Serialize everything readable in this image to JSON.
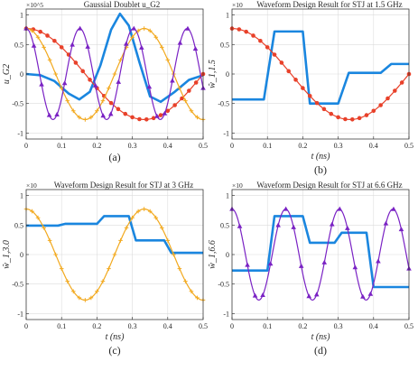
{
  "colors": {
    "blue": "#1a86df",
    "red": "#e8412a",
    "orange": "#f2a91e",
    "purple": "#7a22c4",
    "grid": "#dcdcdc",
    "axis": "#262626"
  },
  "chart_data": [
    {
      "type": "line",
      "title": "Gaussial Doublet u_G2",
      "caption": "(a)",
      "ylabel": "u_G2",
      "xlabel": "",
      "exponent": "×10^5",
      "xlim": [
        0,
        0.5
      ],
      "ylim": [
        -1.1,
        1.1
      ],
      "xticks": [
        "0",
        "0.1",
        "0.2",
        "0.3",
        "0.4",
        "0.5"
      ],
      "yticks": [
        "1",
        "0.5",
        "0",
        "-0.5",
        "-1"
      ],
      "grid": true,
      "series": [
        {
          "color": "blue",
          "marker": "none",
          "x": [
            0,
            0.04,
            0.08,
            0.12,
            0.15,
            0.18,
            0.21,
            0.24,
            0.265,
            0.29,
            0.32,
            0.35,
            0.38,
            0.42,
            0.46,
            0.5
          ],
          "y": [
            0,
            -0.02,
            -0.12,
            -0.33,
            -0.43,
            -0.3,
            0.15,
            0.75,
            1.02,
            0.82,
            0.2,
            -0.38,
            -0.47,
            -0.3,
            -0.1,
            -0.02
          ]
        },
        {
          "color": "red",
          "marker": "circle",
          "x_start": 0,
          "x_end": 0.5,
          "samples": 26,
          "amplitude": 0.77,
          "freq": 1.5,
          "phase": 0
        },
        {
          "color": "orange",
          "marker": "plus",
          "x_start": 0,
          "x_end": 0.5,
          "samples": 31,
          "amplitude": 0.77,
          "freq": 3,
          "phase": 0
        },
        {
          "color": "purple",
          "marker": "triangle",
          "x_start": 0,
          "x_end": 0.5,
          "samples": 24,
          "amplitude": 0.77,
          "freq": 6.6,
          "phase": 0
        }
      ]
    },
    {
      "type": "line",
      "title": "Waveform Design Result for STJ at 1.5 GHz",
      "caption": "(b)",
      "ylabel": "ŵ_1,1.5",
      "xlabel": "t (ns)",
      "exponent": "×10",
      "xlim": [
        0,
        0.5
      ],
      "ylim": [
        -1.1,
        1.1
      ],
      "xticks": [
        "0",
        "0.1",
        "0.2",
        "0.3",
        "0.4",
        "0.5"
      ],
      "yticks": [
        "1",
        "0.5",
        "0",
        "-0.5",
        "-1"
      ],
      "grid": true,
      "series": [
        {
          "color": "blue",
          "marker": "none",
          "x": [
            0,
            0.09,
            0.12,
            0.2,
            0.22,
            0.3,
            0.33,
            0.42,
            0.45,
            0.5
          ],
          "y": [
            -0.43,
            -0.43,
            0.72,
            0.72,
            -0.5,
            -0.5,
            0.02,
            0.02,
            0.17,
            0.17
          ]
        },
        {
          "color": "red",
          "marker": "circle",
          "x_start": 0,
          "x_end": 0.5,
          "samples": 26,
          "amplitude": 0.77,
          "freq": 1.5,
          "phase": 0
        }
      ]
    },
    {
      "type": "line",
      "title": "Waveform Design Result for STJ at 3 GHz",
      "caption": "(c)",
      "ylabel": "ŵ_1,3.0",
      "xlabel": "t (ns)",
      "exponent": "×10",
      "xlim": [
        0,
        0.5
      ],
      "ylim": [
        -1.1,
        1.1
      ],
      "xticks": [
        "0",
        "0.1",
        "0.2",
        "0.3",
        "0.4",
        "0.5"
      ],
      "yticks": [
        "1",
        "0.5",
        "0",
        "-0.5",
        "-1"
      ],
      "grid": true,
      "series": [
        {
          "color": "blue",
          "marker": "none",
          "x": [
            0,
            0.09,
            0.11,
            0.2,
            0.22,
            0.29,
            0.31,
            0.39,
            0.41,
            0.5
          ],
          "y": [
            0.49,
            0.49,
            0.52,
            0.52,
            0.65,
            0.65,
            0.24,
            0.24,
            0.03,
            0.03
          ]
        },
        {
          "color": "orange",
          "marker": "plus",
          "x_start": 0,
          "x_end": 0.5,
          "samples": 31,
          "amplitude": 0.77,
          "freq": 3,
          "phase": 0
        }
      ]
    },
    {
      "type": "line",
      "title": "Waveform Design Result for STJ at 6.6 GHz",
      "caption": "(d)",
      "ylabel": "ŵ_1,6.6",
      "xlabel": "t (ns)",
      "exponent": "×10",
      "xlim": [
        0,
        0.5
      ],
      "ylim": [
        -1.1,
        1.1
      ],
      "xticks": [
        "0",
        "0.1",
        "0.2",
        "0.3",
        "0.4",
        "0.5"
      ],
      "yticks": [
        "1",
        "0.5",
        "0",
        "-0.5",
        "-1"
      ],
      "grid": true,
      "series": [
        {
          "color": "blue",
          "marker": "none",
          "x": [
            0,
            0.1,
            0.12,
            0.2,
            0.22,
            0.29,
            0.31,
            0.38,
            0.4,
            0.5
          ],
          "y": [
            -0.27,
            -0.27,
            0.65,
            0.65,
            0.2,
            0.2,
            0.37,
            0.37,
            -0.55,
            -0.55
          ]
        },
        {
          "color": "purple",
          "marker": "triangle",
          "x_start": 0,
          "x_end": 0.5,
          "samples": 24,
          "amplitude": 0.77,
          "freq": 6.6,
          "phase": 0
        }
      ]
    }
  ]
}
